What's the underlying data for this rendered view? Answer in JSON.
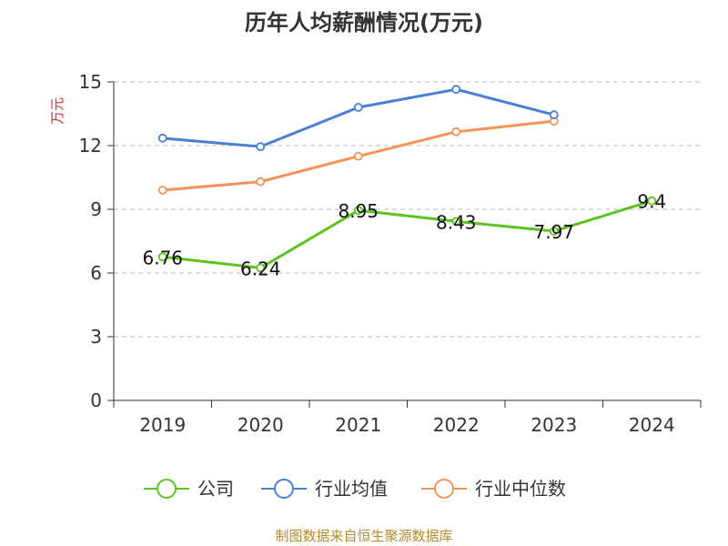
{
  "chart_data": {
    "type": "line",
    "title": "历年人均薪酬情况(万元)",
    "ylabel": "万元",
    "xlabel": "",
    "categories": [
      "2019",
      "2020",
      "2021",
      "2022",
      "2023",
      "2024"
    ],
    "ylim": [
      0,
      15
    ],
    "yticks": [
      0,
      3,
      6,
      9,
      12,
      15
    ],
    "grid": true,
    "legend": "bottom",
    "series": [
      {
        "name": "公司",
        "color": "#5cc41f",
        "values": [
          6.76,
          6.24,
          8.95,
          8.43,
          7.97,
          9.4
        ],
        "labels": [
          "6.76",
          "6.24",
          "8.95",
          "8.43",
          "7.97",
          "9.4"
        ]
      },
      {
        "name": "行业均值",
        "color": "#4a7fd6",
        "values": [
          12.35,
          11.95,
          13.8,
          14.65,
          13.45,
          null
        ]
      },
      {
        "name": "行业中位数",
        "color": "#f5925a",
        "values": [
          9.9,
          10.3,
          11.5,
          12.65,
          13.15,
          null
        ]
      }
    ]
  },
  "footer": "制图数据来自恒生聚源数据库"
}
